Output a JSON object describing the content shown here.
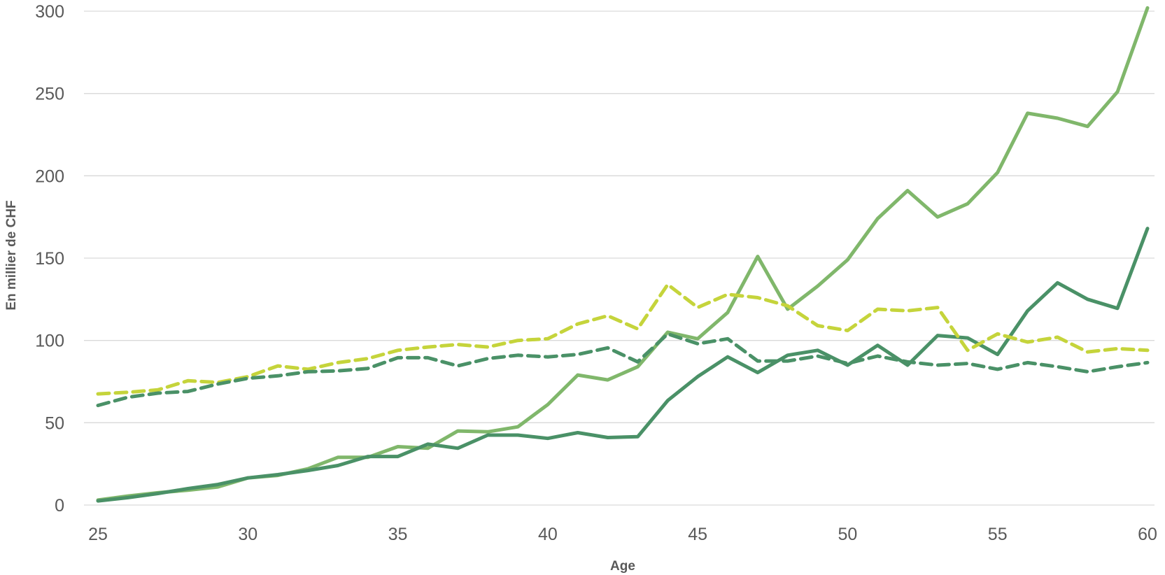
{
  "chart_data": {
    "type": "line",
    "title": "",
    "xlabel": "Age",
    "ylabel": "En millier de CHF",
    "xlim": [
      25,
      60
    ],
    "ylim": [
      0,
      300
    ],
    "x_ticks": [
      25,
      30,
      35,
      40,
      45,
      50,
      55,
      60
    ],
    "y_ticks": [
      0,
      50,
      100,
      150,
      200,
      250,
      300
    ],
    "grid": "horizontal",
    "legend": "none",
    "x": [
      25,
      26,
      27,
      28,
      29,
      30,
      31,
      32,
      33,
      34,
      35,
      36,
      37,
      38,
      39,
      40,
      41,
      42,
      43,
      44,
      45,
      46,
      47,
      48,
      49,
      50,
      51,
      52,
      53,
      54,
      55,
      56,
      57,
      58,
      59,
      60
    ],
    "series": [
      {
        "color": "#80b76b",
        "dash": "solid",
        "values": [
          3,
          5.5,
          7.5,
          9,
          11,
          16.5,
          18,
          22,
          29,
          29,
          35.5,
          34.5,
          45,
          44.5,
          47.5,
          61,
          79,
          76,
          84,
          105,
          101,
          117,
          151,
          119,
          133,
          149,
          174,
          191,
          175,
          183,
          202,
          238,
          235,
          230,
          251,
          302
        ]
      },
      {
        "color": "#4a9167",
        "dash": "solid",
        "values": [
          2.5,
          4.5,
          7,
          10,
          12.5,
          16.5,
          18.5,
          21,
          24,
          29.5,
          29.5,
          37,
          34.5,
          42.5,
          42.5,
          40.5,
          44,
          41,
          41.5,
          63.5,
          78,
          90,
          80.5,
          91,
          94,
          85,
          97,
          85,
          103,
          101.5,
          91.5,
          118,
          135,
          125,
          119.5,
          168
        ]
      },
      {
        "color": "#c5d43b",
        "dash": "dashed",
        "values": [
          67.5,
          68.5,
          70,
          75.5,
          74.5,
          78,
          84.5,
          82.5,
          86.5,
          89,
          94,
          96,
          97.5,
          96,
          100,
          101,
          110,
          115,
          107,
          134,
          120,
          128,
          126,
          121,
          109,
          106,
          119,
          118,
          120,
          94,
          104,
          99,
          102,
          93,
          95,
          94
        ]
      },
      {
        "color": "#4a9167",
        "dash": "dashed",
        "values": [
          60.5,
          65.5,
          68,
          69,
          73.5,
          77,
          78.5,
          81,
          81.5,
          83,
          89.5,
          89.5,
          84.5,
          89,
          91,
          90,
          91.5,
          95.5,
          87,
          104,
          98,
          101,
          87.5,
          87.5,
          90.5,
          86,
          90.5,
          87,
          85,
          86,
          82.5,
          86.5,
          84,
          81,
          84,
          86.5
        ]
      }
    ]
  }
}
